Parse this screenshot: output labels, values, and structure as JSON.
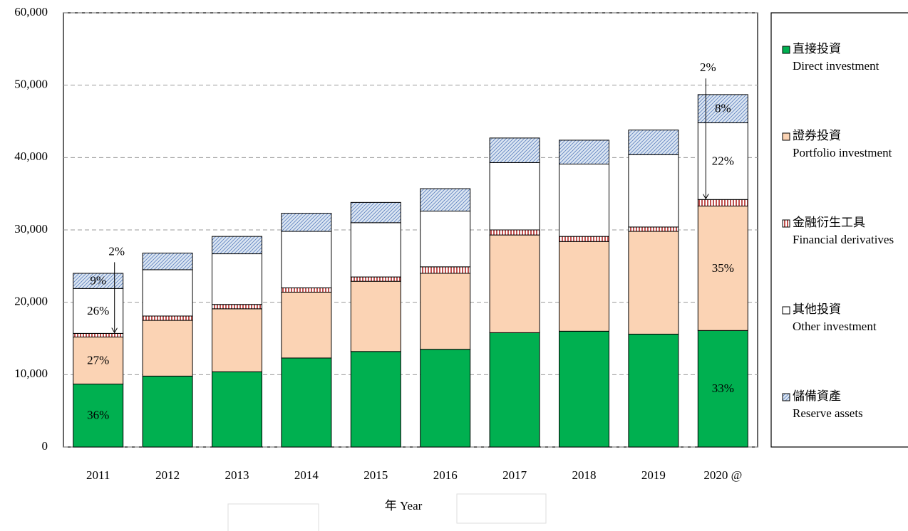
{
  "chart_data": {
    "type": "stacked_bar",
    "x_label": "年 Year",
    "categories": [
      "2011",
      "2012",
      "2013",
      "2014",
      "2015",
      "2016",
      "2017",
      "2018",
      "2019",
      "2020 @"
    ],
    "series": [
      {
        "name": "直接投資",
        "subname": "Direct investment",
        "color": "#00b050",
        "pattern": "solid",
        "values": [
          8700,
          9800,
          10400,
          12300,
          13200,
          13500,
          15800,
          16000,
          15600,
          16100
        ]
      },
      {
        "name": "證券投資",
        "subname": "Portfolio investment",
        "color": "#fbd3b4",
        "pattern": "solid",
        "values": [
          6500,
          7700,
          8700,
          9100,
          9700,
          10500,
          13500,
          12400,
          14200,
          17200
        ]
      },
      {
        "name": "金融衍生工具",
        "subname": "Financial derivatives",
        "color": "#c0504d",
        "pattern": "vertical",
        "values": [
          500,
          600,
          600,
          600,
          600,
          900,
          700,
          700,
          600,
          900
        ]
      },
      {
        "name": "其他投資",
        "subname": "Other investment",
        "color": "#ffffff",
        "pattern": "solid",
        "values": [
          6200,
          6400,
          7000,
          7800,
          7500,
          7700,
          9300,
          10000,
          10000,
          10600
        ]
      },
      {
        "name": "儲備資產",
        "subname": "Reserve assets",
        "color": "#5b7fbf",
        "pattern": "diagonal",
        "values": [
          2100,
          2300,
          2400,
          2500,
          2800,
          3100,
          3400,
          3300,
          3400,
          3900
        ]
      }
    ],
    "annotations": [
      [
        "36%",
        "27%",
        "2%",
        "26%",
        "9%"
      ],
      [
        "33%",
        "35%",
        "2%",
        "22%",
        "8%"
      ]
    ],
    "ylim": [
      0,
      60000
    ],
    "yticks": [
      0,
      {
        "value": 10000,
        "label": "10,000"
      },
      {
        "value": 20000,
        "label": "20,000"
      },
      {
        "value": 30000,
        "label": "30,000"
      },
      {
        "value": 40000,
        "label": "40,000"
      },
      {
        "value": 50000,
        "label": "50,000"
      },
      {
        "value": 60000,
        "label": "60,000"
      }
    ],
    "grid": true,
    "legend": "right"
  }
}
